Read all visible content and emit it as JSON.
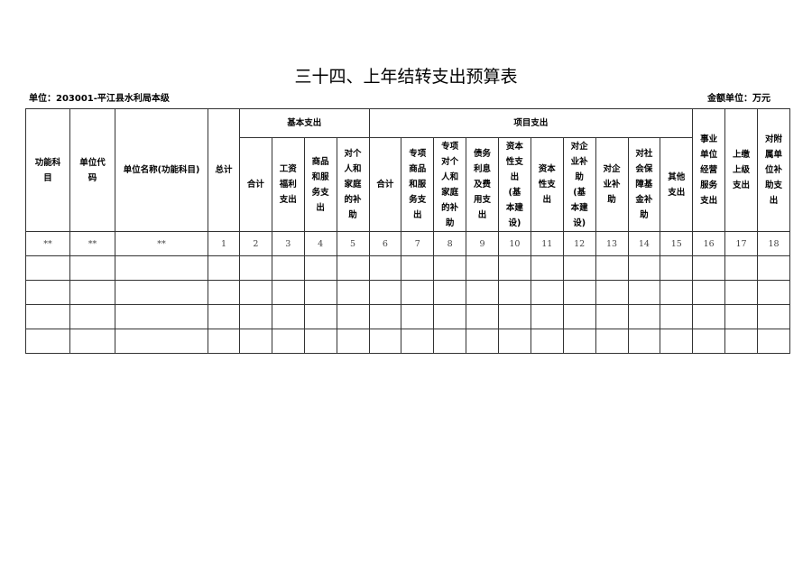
{
  "title": "三十四、上年结转支出预算表",
  "unit_label": "单位：203001-平江县水利局本级",
  "money_unit": "金额单位：万元",
  "headers": {
    "func": "功能科目",
    "code": "单位代码",
    "name": "单位名称(功能科目)",
    "total": "总计",
    "basic": "基本支出",
    "project": "项目支出",
    "basic_cols": [
      "合计",
      "工资福利支出",
      "商品和服务支出",
      "对个人和家庭的补助"
    ],
    "project_cols": [
      "合计",
      "专项商品和服务支出",
      "专项对个人和家庭的补助",
      "债务利息及费用支出",
      "资本性支出(基本建设)",
      "资本性支出",
      "对企业补助(基本建设)",
      "对企业补助",
      "对社会保障基金补助",
      "其他支出"
    ],
    "tail_cols": [
      "事业单位经营服务支出",
      "上缴上级支出",
      "对附属单位补助支出"
    ]
  },
  "number_row": [
    "**",
    "**",
    "**",
    "1",
    "2",
    "3",
    "4",
    "5",
    "6",
    "7",
    "8",
    "9",
    "10",
    "11",
    "12",
    "13",
    "14",
    "15",
    "16",
    "17",
    "18"
  ],
  "empty_rows": 4
}
